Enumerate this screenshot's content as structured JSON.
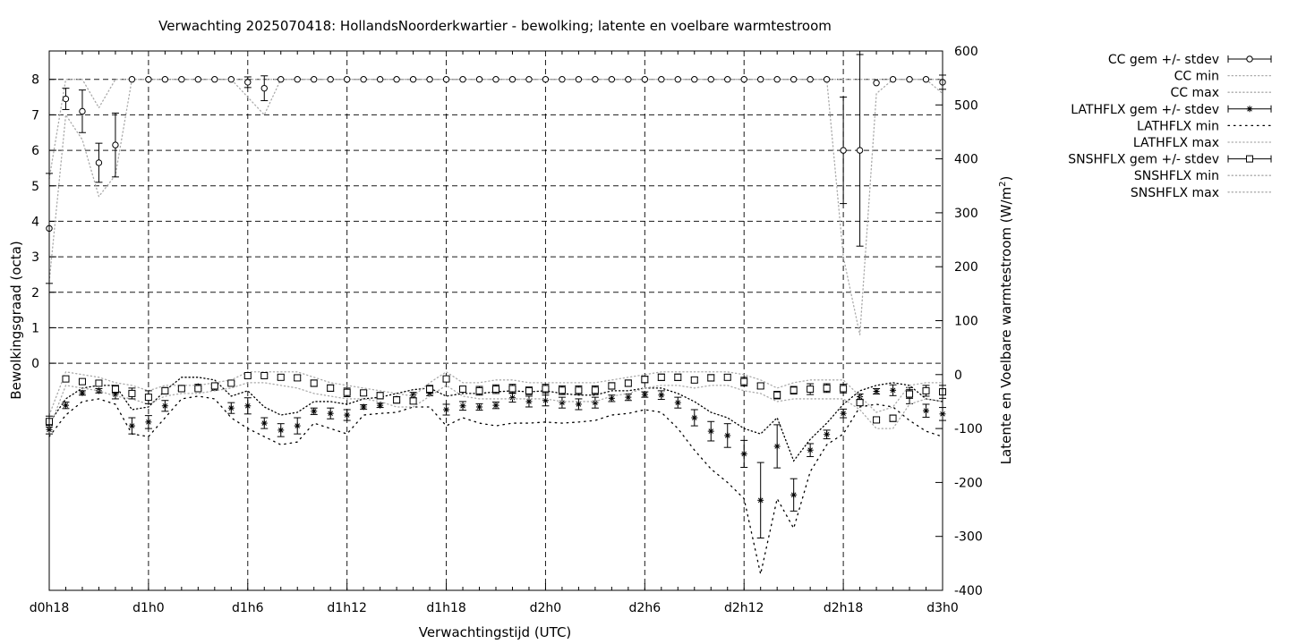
{
  "chart_data": {
    "type": "line",
    "title": "Verwachting 2025070418: HollandsNoorderkwartier - bewolking; latente en voelbare warmtestroom",
    "xlabel": "Verwachtingstijd (UTC)",
    "ylabel_left": "Bewolkingsgraad (octa)",
    "ylabel_right_main": "Latente en Voelbare warmtestroom (W/m",
    "ylabel_right_sup": "2",
    "ylabel_right_end": ")",
    "xlim": [
      18,
      72
    ],
    "ylim_left": [
      -6.4,
      8.8
    ],
    "ylim_right": [
      -400,
      600
    ],
    "x_ticks": [
      {
        "x": 18,
        "label": "d0h18"
      },
      {
        "x": 24,
        "label": "d1h0"
      },
      {
        "x": 30,
        "label": "d1h6"
      },
      {
        "x": 36,
        "label": "d1h12"
      },
      {
        "x": 42,
        "label": "d1h18"
      },
      {
        "x": 48,
        "label": "d2h0"
      },
      {
        "x": 54,
        "label": "d2h6"
      },
      {
        "x": 60,
        "label": "d2h12"
      },
      {
        "x": 66,
        "label": "d2h18"
      },
      {
        "x": 72,
        "label": "d3h0"
      }
    ],
    "y_left_ticks": [
      "0",
      "1",
      "2",
      "3",
      "4",
      "5",
      "6",
      "7",
      "8"
    ],
    "y_right_ticks": [
      "-400",
      "-300",
      "-200",
      "-100",
      "0",
      "100",
      "200",
      "300",
      "400",
      "500",
      "600"
    ],
    "grid": true,
    "legend_position": "outside-right",
    "legend": [
      {
        "label": "CC gem +/- stdev",
        "marker": "circle",
        "errorbar": true
      },
      {
        "label": "CC min",
        "style": "dotted"
      },
      {
        "label": "CC max",
        "style": "dotted"
      },
      {
        "label": "LATHFLX gem +/- stdev",
        "marker": "star",
        "errorbar": true
      },
      {
        "label": "LATHFLX min",
        "style": "dotted"
      },
      {
        "label": "LATHFLX max",
        "style": "dotted"
      },
      {
        "label": "SNSHFLX gem +/- stdev",
        "marker": "square",
        "errorbar": true
      },
      {
        "label": "SNSHFLX min",
        "style": "dotted"
      },
      {
        "label": "SNSHFLX max",
        "style": "dotted"
      }
    ],
    "x": [
      18,
      19,
      20,
      21,
      22,
      23,
      24,
      25,
      26,
      27,
      28,
      29,
      30,
      31,
      32,
      33,
      34,
      35,
      36,
      37,
      38,
      39,
      40,
      41,
      42,
      43,
      44,
      45,
      46,
      47,
      48,
      49,
      50,
      51,
      52,
      53,
      54,
      55,
      56,
      57,
      58,
      59,
      60,
      61,
      62,
      63,
      64,
      65,
      66,
      67,
      68,
      69,
      70,
      71,
      72
    ],
    "series": [
      {
        "name": "CC",
        "axis": "left",
        "mean": [
          3.8,
          7.45,
          7.1,
          5.65,
          6.15,
          8,
          8,
          8,
          8,
          8,
          8,
          8,
          7.92,
          7.75,
          8,
          8,
          8,
          8,
          8,
          8,
          8,
          8,
          8,
          8,
          8,
          8,
          8,
          8,
          8,
          8,
          8,
          8,
          8,
          8,
          8,
          8,
          8,
          8,
          8,
          8,
          8,
          8,
          8,
          8,
          8,
          8,
          8,
          8,
          6.0,
          6.0,
          7.9,
          8,
          8,
          8,
          7.92
        ],
        "stdev": [
          1.55,
          0.3,
          0.6,
          0.55,
          0.9,
          0,
          0,
          0,
          0,
          0,
          0,
          0,
          0.15,
          0.35,
          0,
          0,
          0,
          0,
          0,
          0,
          0,
          0,
          0,
          0,
          0,
          0,
          0,
          0,
          0,
          0,
          0,
          0,
          0,
          0,
          0,
          0,
          0,
          0,
          0,
          0,
          0,
          0,
          0,
          0,
          0,
          0,
          0,
          0,
          1.5,
          2.7,
          0,
          0,
          0,
          0,
          0.2
        ],
        "min": [
          2.3,
          7.0,
          6.3,
          4.7,
          5.3,
          8,
          8,
          8,
          8,
          8,
          8,
          8,
          7.5,
          7.0,
          8,
          8,
          8,
          8,
          8,
          8,
          8,
          8,
          8,
          8,
          8,
          8,
          8,
          8,
          8,
          8,
          8,
          8,
          8,
          8,
          8,
          8,
          8,
          8,
          8,
          8,
          8,
          8,
          8,
          8,
          8,
          8,
          8,
          8,
          3.0,
          0.8,
          7.6,
          8,
          8,
          8,
          7.6
        ],
        "max": [
          5.2,
          8,
          8,
          7.2,
          8,
          8,
          8,
          8,
          8,
          8,
          8,
          8,
          8,
          8,
          8,
          8,
          8,
          8,
          8,
          8,
          8,
          8,
          8,
          8,
          8,
          8,
          8,
          8,
          8,
          8,
          8,
          8,
          8,
          8,
          8,
          8,
          8,
          8,
          8,
          8,
          8,
          8,
          8,
          8,
          8,
          8,
          8,
          8,
          8,
          8,
          8,
          8,
          8,
          8,
          8
        ]
      },
      {
        "name": "LATHFLX",
        "axis": "right",
        "mean": [
          -102,
          -57,
          -34,
          -30,
          -37,
          -95,
          -88,
          -58,
          -25,
          -22,
          -24,
          -62,
          -58,
          -90,
          -103,
          -95,
          -68,
          -72,
          -75,
          -60,
          -57,
          -45,
          -38,
          -34,
          -65,
          -58,
          -60,
          -57,
          -43,
          -50,
          -48,
          -52,
          -55,
          -52,
          -44,
          -42,
          -37,
          -38,
          -52,
          -80,
          -105,
          -113,
          -147,
          -233,
          -133,
          -223,
          -140,
          -111,
          -72,
          -41,
          -31,
          -29,
          -39,
          -67,
          -73
        ],
        "stdev": [
          8,
          6,
          4,
          4,
          8,
          15,
          12,
          10,
          5,
          4,
          5,
          10,
          15,
          10,
          12,
          15,
          6,
          10,
          10,
          4,
          4,
          4,
          5,
          5,
          10,
          8,
          6,
          6,
          8,
          10,
          10,
          10,
          10,
          10,
          6,
          6,
          5,
          8,
          10,
          15,
          18,
          22,
          25,
          70,
          40,
          30,
          12,
          8,
          8,
          5,
          5,
          10,
          15,
          12,
          12
        ],
        "min": [
          -115,
          -75,
          -50,
          -45,
          -55,
          -110,
          -115,
          -80,
          -45,
          -40,
          -45,
          -80,
          -100,
          -115,
          -130,
          -125,
          -90,
          -100,
          -110,
          -75,
          -72,
          -70,
          -60,
          -60,
          -95,
          -80,
          -90,
          -95,
          -90,
          -90,
          -88,
          -90,
          -88,
          -85,
          -75,
          -72,
          -65,
          -70,
          -100,
          -140,
          -175,
          -200,
          -230,
          -370,
          -230,
          -285,
          -180,
          -130,
          -110,
          -60,
          -55,
          -60,
          -85,
          -105,
          -115
        ],
        "max": [
          -90,
          -45,
          -25,
          -20,
          -20,
          -65,
          -60,
          -30,
          -5,
          -5,
          -10,
          -40,
          -30,
          -60,
          -75,
          -70,
          -50,
          -50,
          -55,
          -45,
          -42,
          -35,
          -28,
          -25,
          -40,
          -35,
          -35,
          -32,
          -30,
          -32,
          -30,
          -35,
          -38,
          -38,
          -30,
          -30,
          -25,
          -25,
          -35,
          -50,
          -70,
          -80,
          -100,
          -110,
          -80,
          -160,
          -120,
          -90,
          -55,
          -30,
          -20,
          -15,
          -20,
          -45,
          -50
        ]
      },
      {
        "name": "SNSHFLX",
        "axis": "right",
        "mean": [
          -87,
          -8,
          -13,
          -16,
          -27,
          -35,
          -42,
          -30,
          -26,
          -26,
          -21,
          -16,
          -2,
          -2,
          -5,
          -6,
          -16,
          -25,
          -33,
          -34,
          -39,
          -47,
          -49,
          -27,
          -8,
          -27,
          -30,
          -27,
          -26,
          -30,
          -26,
          -29,
          -29,
          -29,
          -21,
          -16,
          -9,
          -5,
          -5,
          -10,
          -6,
          -5,
          -13,
          -21,
          -38,
          -29,
          -27,
          -25,
          -26,
          -52,
          -84,
          -81,
          -36,
          -30,
          -32
        ],
        "stdev": [
          10,
          3,
          4,
          5,
          7,
          10,
          12,
          6,
          3,
          3,
          3,
          3,
          3,
          3,
          4,
          5,
          6,
          6,
          8,
          5,
          6,
          6,
          5,
          7,
          5,
          5,
          8,
          8,
          8,
          7,
          8,
          8,
          8,
          8,
          6,
          6,
          6,
          6,
          6,
          5,
          6,
          5,
          8,
          5,
          7,
          7,
          10,
          8,
          8,
          5,
          5,
          6,
          8,
          10,
          12
        ],
        "min": [
          -100,
          -20,
          -25,
          -30,
          -40,
          -45,
          -55,
          -40,
          -35,
          -35,
          -30,
          -25,
          -15,
          -15,
          -20,
          -25,
          -35,
          -40,
          -45,
          -45,
          -50,
          -60,
          -60,
          -40,
          -20,
          -40,
          -45,
          -45,
          -45,
          -45,
          -45,
          -50,
          -50,
          -50,
          -40,
          -35,
          -25,
          -20,
          -20,
          -25,
          -20,
          -20,
          -30,
          -35,
          -50,
          -45,
          -45,
          -45,
          -45,
          -65,
          -100,
          -100,
          -55,
          -45,
          -50
        ],
        "max": [
          -75,
          5,
          0,
          -5,
          -15,
          -20,
          -30,
          -20,
          -20,
          -20,
          -15,
          -10,
          5,
          5,
          5,
          5,
          -5,
          -15,
          -20,
          -25,
          -30,
          -35,
          -40,
          -15,
          5,
          -15,
          -15,
          -10,
          -10,
          -15,
          -15,
          -15,
          -15,
          -15,
          -10,
          -5,
          0,
          5,
          5,
          5,
          5,
          5,
          0,
          -10,
          -25,
          -15,
          -10,
          -10,
          -10,
          -40,
          -70,
          -60,
          -20,
          -15,
          -15
        ]
      }
    ]
  }
}
